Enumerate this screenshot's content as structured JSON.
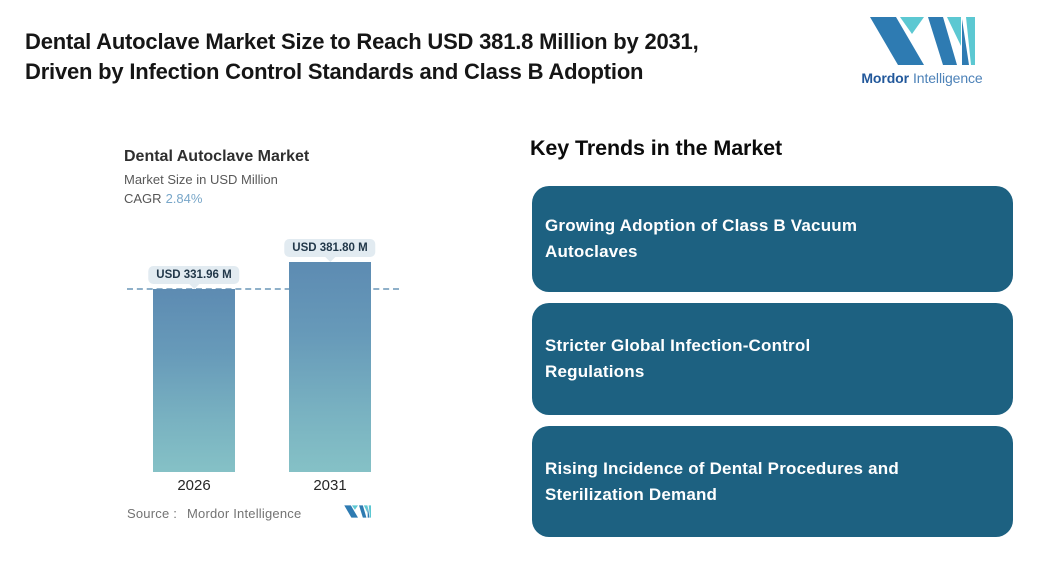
{
  "header": {
    "title_lines": [
      "Dental Autoclave Market Size to Reach USD 381.8 Million by 2031,",
      "Driven by Infection Control Standards and Class B Adoption"
    ],
    "brand": {
      "word1": "Mordor",
      "word2": "Intelligence"
    }
  },
  "chart": {
    "title": "Dental Autoclave Market",
    "subtitle": "Market Size in USD Million",
    "cagr_label": "CAGR",
    "cagr_value": "2.84%",
    "bars": [
      {
        "year": "2026",
        "label": "USD 331.96 M"
      },
      {
        "year": "2031",
        "label": "USD 381.80 M"
      }
    ],
    "source_label": "Source :",
    "source_value": "Mordor Intelligence"
  },
  "chart_data": {
    "type": "bar",
    "title": "Dental Autoclave Market",
    "subtitle": "Market Size in USD Million",
    "cagr_percent": 2.84,
    "categories": [
      "2026",
      "2031"
    ],
    "values": [
      331.96,
      381.8
    ],
    "unit": "USD Million",
    "data_labels": [
      "USD 331.96 M",
      "USD 381.80 M"
    ],
    "reference_line_value": 331.96,
    "grid": false,
    "legend": false,
    "source": "Mordor Intelligence"
  },
  "trends": {
    "heading": "Key Trends in the Market",
    "items": [
      {
        "text": "Growing Adoption of Class B Vacuum Autoclaves",
        "lines": [
          "Growing Adoption of Class B Vacuum",
          "Autoclaves"
        ]
      },
      {
        "text": "Stricter Global Infection-Control Regulations",
        "lines": [
          "Stricter Global Infection-Control",
          "Regulations"
        ]
      },
      {
        "text": "Rising Incidence of Dental Procedures and Sterilization Demand",
        "lines": [
          "Rising Incidence of Dental Procedures and",
          "Sterilization Demand"
        ]
      }
    ]
  },
  "colors": {
    "trend_card_bg": "#1d6181",
    "bar_gradient_top": "#5d8bb2",
    "bar_gradient_bottom": "#85c1c6",
    "dashed_reference_line": "#8fb0c9",
    "value_pill_bg": "#e2ebf1",
    "cagr_value_text": "#79a7c9",
    "brand_blue": "#2e7bb2",
    "brand_teal": "#5cc8d2"
  }
}
